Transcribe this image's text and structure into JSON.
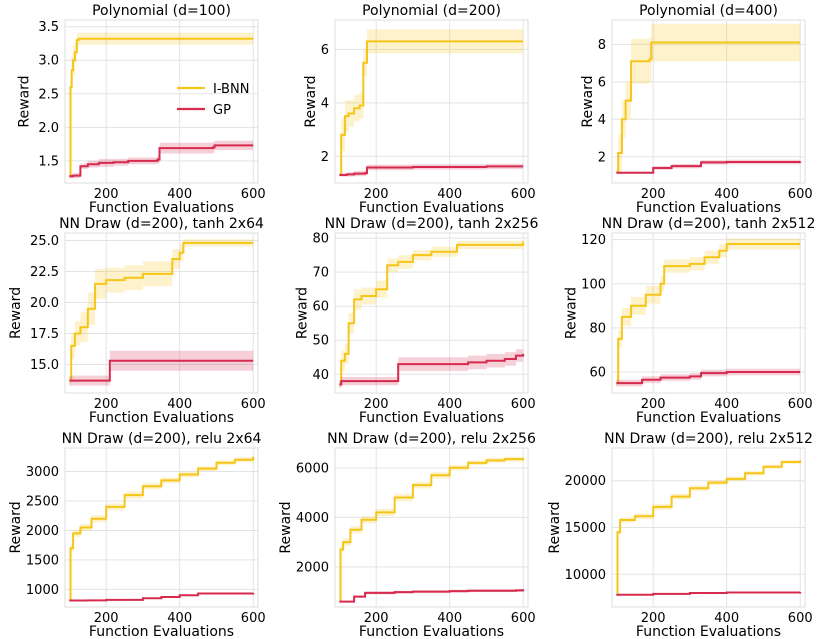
{
  "figure": {
    "xlabel": "Function Evaluations",
    "ylabel": "Reward"
  },
  "legend": {
    "placement": "center-right in first panel",
    "entries": [
      {
        "label": "I-BNN",
        "color": "#f5c518"
      },
      {
        "label": "GP",
        "color": "#d62a4e"
      }
    ]
  },
  "chart_data": [
    {
      "type": "line",
      "title": "Polynomial (d=100)",
      "xlabel": "Function Evaluations",
      "ylabel": "Reward",
      "xlim": [
        88,
        613
      ],
      "ylim": [
        1.17,
        3.6
      ],
      "xticks": [
        200,
        400,
        600
      ],
      "yticks": [
        1.5,
        2.0,
        2.5,
        3.0,
        3.5
      ],
      "ytick_labels": [
        "1.5",
        "2.0",
        "2.5",
        "3.0",
        "3.5"
      ],
      "grid": true,
      "legend": true,
      "series": [
        {
          "name": "I-BNN",
          "color": "#f5c518",
          "x": [
            100,
            103,
            106,
            110,
            115,
            120,
            125,
            600
          ],
          "y": [
            1.27,
            2.6,
            2.85,
            3.0,
            3.12,
            3.3,
            3.32,
            3.32
          ],
          "band": [
            0.05,
            0.25,
            0.25,
            0.22,
            0.15,
            0.1,
            0.09,
            0.08
          ]
        },
        {
          "name": "GP",
          "color": "#d62a4e",
          "x": [
            100,
            110,
            130,
            150,
            180,
            220,
            260,
            300,
            340,
            345,
            490,
            495,
            600
          ],
          "y": [
            1.27,
            1.28,
            1.42,
            1.45,
            1.47,
            1.48,
            1.5,
            1.5,
            1.52,
            1.69,
            1.7,
            1.73,
            1.73
          ],
          "band": [
            0.03,
            0.04,
            0.04,
            0.05,
            0.06,
            0.05,
            0.05,
            0.05,
            0.06,
            0.08,
            0.08,
            0.07,
            0.06
          ]
        }
      ]
    },
    {
      "type": "line",
      "title": "Polynomial (d=200)",
      "xlabel": "Function Evaluations",
      "ylabel": "Reward",
      "xlim": [
        88,
        613
      ],
      "ylim": [
        1.0,
        7.1
      ],
      "xticks": [
        200,
        400,
        600
      ],
      "yticks": [
        2,
        4,
        6
      ],
      "ytick_labels": [
        "2",
        "4",
        "6"
      ],
      "grid": true,
      "legend": false,
      "series": [
        {
          "name": "I-BNN",
          "color": "#f5c518",
          "x": [
            100,
            105,
            115,
            125,
            140,
            155,
            165,
            175,
            600
          ],
          "y": [
            1.3,
            2.8,
            3.5,
            3.6,
            3.8,
            3.9,
            5.5,
            6.3,
            6.3
          ],
          "band": [
            0.05,
            0.6,
            0.6,
            0.5,
            0.5,
            0.5,
            0.5,
            0.45,
            0.45
          ]
        },
        {
          "name": "GP",
          "color": "#d62a4e",
          "x": [
            100,
            120,
            140,
            170,
            175,
            300,
            500,
            600
          ],
          "y": [
            1.3,
            1.32,
            1.35,
            1.37,
            1.58,
            1.6,
            1.62,
            1.62
          ],
          "band": [
            0.06,
            0.08,
            0.1,
            0.1,
            0.1,
            0.1,
            0.1,
            0.1
          ]
        }
      ]
    },
    {
      "type": "line",
      "title": "Polynomial (d=400)",
      "xlabel": "Function Evaluations",
      "ylabel": "Reward",
      "xlim": [
        88,
        613
      ],
      "ylim": [
        0.6,
        9.3
      ],
      "xticks": [
        200,
        400,
        600
      ],
      "yticks": [
        2,
        4,
        6,
        8
      ],
      "ytick_labels": [
        "2",
        "4",
        "6",
        "8"
      ],
      "grid": true,
      "legend": false,
      "series": [
        {
          "name": "I-BNN",
          "color": "#f5c518",
          "x": [
            100,
            105,
            115,
            125,
            140,
            190,
            195,
            600
          ],
          "y": [
            1.2,
            2.2,
            4.0,
            5.0,
            7.1,
            7.2,
            8.1,
            8.1
          ],
          "band": [
            0.1,
            1.0,
            1.0,
            1.0,
            1.2,
            1.2,
            1.0,
            1.0
          ]
        },
        {
          "name": "GP",
          "color": "#d62a4e",
          "x": [
            100,
            190,
            200,
            250,
            320,
            330,
            400,
            600
          ],
          "y": [
            1.15,
            1.15,
            1.4,
            1.5,
            1.5,
            1.7,
            1.72,
            1.75
          ],
          "band": [
            0.05,
            0.06,
            0.1,
            0.12,
            0.12,
            0.12,
            0.12,
            0.12
          ]
        }
      ]
    },
    {
      "type": "line",
      "title": "NN Draw (d=200), tanh 2x64",
      "xlabel": "Function Evaluations",
      "ylabel": "Reward",
      "xlim": [
        88,
        613
      ],
      "ylim": [
        12.7,
        25.6
      ],
      "xticks": [
        200,
        400,
        600
      ],
      "yticks": [
        15.0,
        17.5,
        20.0,
        22.5,
        25.0
      ],
      "ytick_labels": [
        "15.0",
        "17.5",
        "20.0",
        "22.5",
        "25.0"
      ],
      "grid": true,
      "legend": false,
      "series": [
        {
          "name": "I-BNN",
          "color": "#f5c518",
          "x": [
            100,
            105,
            115,
            130,
            150,
            170,
            200,
            250,
            300,
            380,
            400,
            410,
            600
          ],
          "y": [
            13.7,
            16.5,
            17.5,
            18.0,
            19.5,
            21.5,
            21.8,
            22.0,
            22.3,
            23.5,
            24.0,
            24.8,
            24.8
          ],
          "band": [
            0.3,
            1.0,
            1.0,
            1.2,
            1.3,
            1.2,
            1.0,
            1.0,
            1.0,
            0.8,
            0.7,
            0.3,
            0.3
          ]
        },
        {
          "name": "GP",
          "color": "#d62a4e",
          "x": [
            100,
            205,
            210,
            600
          ],
          "y": [
            13.7,
            13.7,
            15.3,
            15.3
          ],
          "band": [
            0.4,
            0.4,
            0.8,
            0.8
          ]
        }
      ]
    },
    {
      "type": "line",
      "title": "NN Draw (d=200), tanh 2x256",
      "xlabel": "Function Evaluations",
      "ylabel": "Reward",
      "xlim": [
        88,
        613
      ],
      "ylim": [
        34.5,
        81.5
      ],
      "xticks": [
        200,
        400,
        600
      ],
      "yticks": [
        40,
        50,
        60,
        70,
        80
      ],
      "ytick_labels": [
        "40",
        "50",
        "60",
        "70",
        "80"
      ],
      "grid": true,
      "legend": false,
      "series": [
        {
          "name": "I-BNN",
          "color": "#f5c518",
          "x": [
            100,
            105,
            115,
            125,
            140,
            160,
            200,
            230,
            260,
            300,
            350,
            420,
            600
          ],
          "y": [
            37,
            44,
            46,
            55,
            62,
            63,
            65,
            72,
            73,
            75,
            76,
            78,
            79
          ],
          "band": [
            1.0,
            3.0,
            3.0,
            3.0,
            3.0,
            2.5,
            2.5,
            2.0,
            2.0,
            1.5,
            1.5,
            1.2,
            1.2
          ]
        },
        {
          "name": "GP",
          "color": "#d62a4e",
          "x": [
            100,
            105,
            255,
            260,
            400,
            450,
            500,
            550,
            580,
            600
          ],
          "y": [
            37,
            38,
            38,
            43,
            43,
            43.5,
            44,
            44.5,
            45.5,
            46
          ],
          "band": [
            1.0,
            1.2,
            1.2,
            2.0,
            2.0,
            2.0,
            2.0,
            2.0,
            1.8,
            1.8
          ]
        }
      ]
    },
    {
      "type": "line",
      "title": "NN Draw (d=200), tanh 2x512",
      "xlabel": "Function Evaluations",
      "ylabel": "Reward",
      "xlim": [
        88,
        613
      ],
      "ylim": [
        50.5,
        123
      ],
      "xticks": [
        200,
        400,
        600
      ],
      "yticks": [
        60,
        80,
        100,
        120
      ],
      "ytick_labels": [
        "60",
        "80",
        "100",
        "120"
      ],
      "grid": true,
      "legend": false,
      "series": [
        {
          "name": "I-BNN",
          "color": "#f5c518",
          "x": [
            100,
            105,
            115,
            140,
            180,
            220,
            230,
            300,
            340,
            380,
            400,
            600
          ],
          "y": [
            55,
            75,
            85,
            90,
            95,
            100,
            108,
            109,
            112,
            115,
            118,
            118
          ],
          "band": [
            1.5,
            4,
            4,
            4,
            4,
            3.5,
            3,
            3,
            3,
            3,
            2.5,
            2.5
          ]
        },
        {
          "name": "GP",
          "color": "#d62a4e",
          "x": [
            100,
            150,
            170,
            220,
            300,
            330,
            400,
            600
          ],
          "y": [
            55,
            55,
            56.5,
            57.5,
            58,
            59.5,
            60,
            60
          ],
          "band": [
            1.5,
            1.5,
            1.5,
            1.5,
            1.5,
            1.5,
            1.5,
            1.5
          ]
        }
      ]
    },
    {
      "type": "line",
      "title": "NN Draw (d=200), relu 2x64",
      "xlabel": "Function Evaluations",
      "ylabel": "Reward",
      "xlim": [
        88,
        613
      ],
      "ylim": [
        700,
        3400
      ],
      "xticks": [
        200,
        400,
        600
      ],
      "yticks": [
        1000,
        1500,
        2000,
        2500,
        3000
      ],
      "ytick_labels": [
        "1000",
        "1500",
        "2000",
        "2500",
        "3000"
      ],
      "grid": true,
      "legend": false,
      "series": [
        {
          "name": "I-BNN",
          "color": "#f5c518",
          "x": [
            100,
            103,
            110,
            130,
            160,
            200,
            250,
            300,
            350,
            400,
            450,
            500,
            550,
            600
          ],
          "y": [
            810,
            1700,
            1950,
            2050,
            2200,
            2400,
            2600,
            2750,
            2850,
            2950,
            3050,
            3150,
            3200,
            3250
          ],
          "band": [
            20,
            60,
            60,
            60,
            60,
            60,
            60,
            50,
            50,
            50,
            40,
            40,
            40,
            40
          ]
        },
        {
          "name": "GP",
          "color": "#d62a4e",
          "x": [
            100,
            150,
            200,
            300,
            350,
            400,
            450,
            600
          ],
          "y": [
            810,
            812,
            820,
            850,
            870,
            900,
            930,
            940
          ],
          "band": [
            10,
            10,
            10,
            10,
            10,
            10,
            10,
            10
          ]
        }
      ]
    },
    {
      "type": "line",
      "title": "NN Draw (d=200), relu 2x256",
      "xlabel": "Function Evaluations",
      "ylabel": "Reward",
      "xlim": [
        88,
        613
      ],
      "ylim": [
        380,
        6800
      ],
      "xticks": [
        200,
        400,
        600
      ],
      "yticks": [
        2000,
        4000,
        6000
      ],
      "ytick_labels": [
        "2000",
        "4000",
        "6000"
      ],
      "grid": true,
      "legend": false,
      "series": [
        {
          "name": "I-BNN",
          "color": "#f5c518",
          "x": [
            100,
            103,
            110,
            130,
            160,
            200,
            250,
            300,
            350,
            400,
            450,
            500,
            550,
            600
          ],
          "y": [
            600,
            2700,
            3000,
            3500,
            3900,
            4200,
            4800,
            5300,
            5700,
            6000,
            6200,
            6300,
            6350,
            6400
          ],
          "band": [
            50,
            150,
            150,
            150,
            150,
            150,
            150,
            130,
            120,
            110,
            100,
            100,
            100,
            100
          ]
        },
        {
          "name": "GP",
          "color": "#d62a4e",
          "x": [
            100,
            140,
            170,
            250,
            300,
            400,
            450,
            580,
            600
          ],
          "y": [
            600,
            800,
            950,
            980,
            1000,
            1020,
            1040,
            1050,
            1100
          ],
          "band": [
            40,
            50,
            60,
            60,
            60,
            60,
            60,
            60,
            60
          ]
        }
      ]
    },
    {
      "type": "line",
      "title": "NN Draw (d=200), relu 2x512",
      "xlabel": "Function Evaluations",
      "ylabel": "Reward",
      "xlim": [
        88,
        613
      ],
      "ylim": [
        6500,
        23500
      ],
      "xticks": [
        200,
        400,
        600
      ],
      "yticks": [
        10000,
        15000,
        20000
      ],
      "ytick_labels": [
        "10000",
        "15000",
        "20000"
      ],
      "grid": true,
      "legend": false,
      "series": [
        {
          "name": "I-BNN",
          "color": "#f5c518",
          "x": [
            100,
            103,
            110,
            150,
            200,
            250,
            300,
            350,
            400,
            450,
            500,
            550,
            600
          ],
          "y": [
            7800,
            14500,
            15800,
            16200,
            17200,
            18300,
            19200,
            19800,
            20200,
            20800,
            21500,
            22000,
            22200
          ],
          "band": [
            100,
            300,
            300,
            300,
            300,
            300,
            300,
            250,
            250,
            250,
            200,
            200,
            200
          ]
        },
        {
          "name": "GP",
          "color": "#d62a4e",
          "x": [
            100,
            150,
            200,
            300,
            400,
            600
          ],
          "y": [
            7800,
            7800,
            7900,
            8000,
            8050,
            8100
          ],
          "band": [
            80,
            80,
            80,
            80,
            80,
            80
          ]
        }
      ]
    }
  ]
}
